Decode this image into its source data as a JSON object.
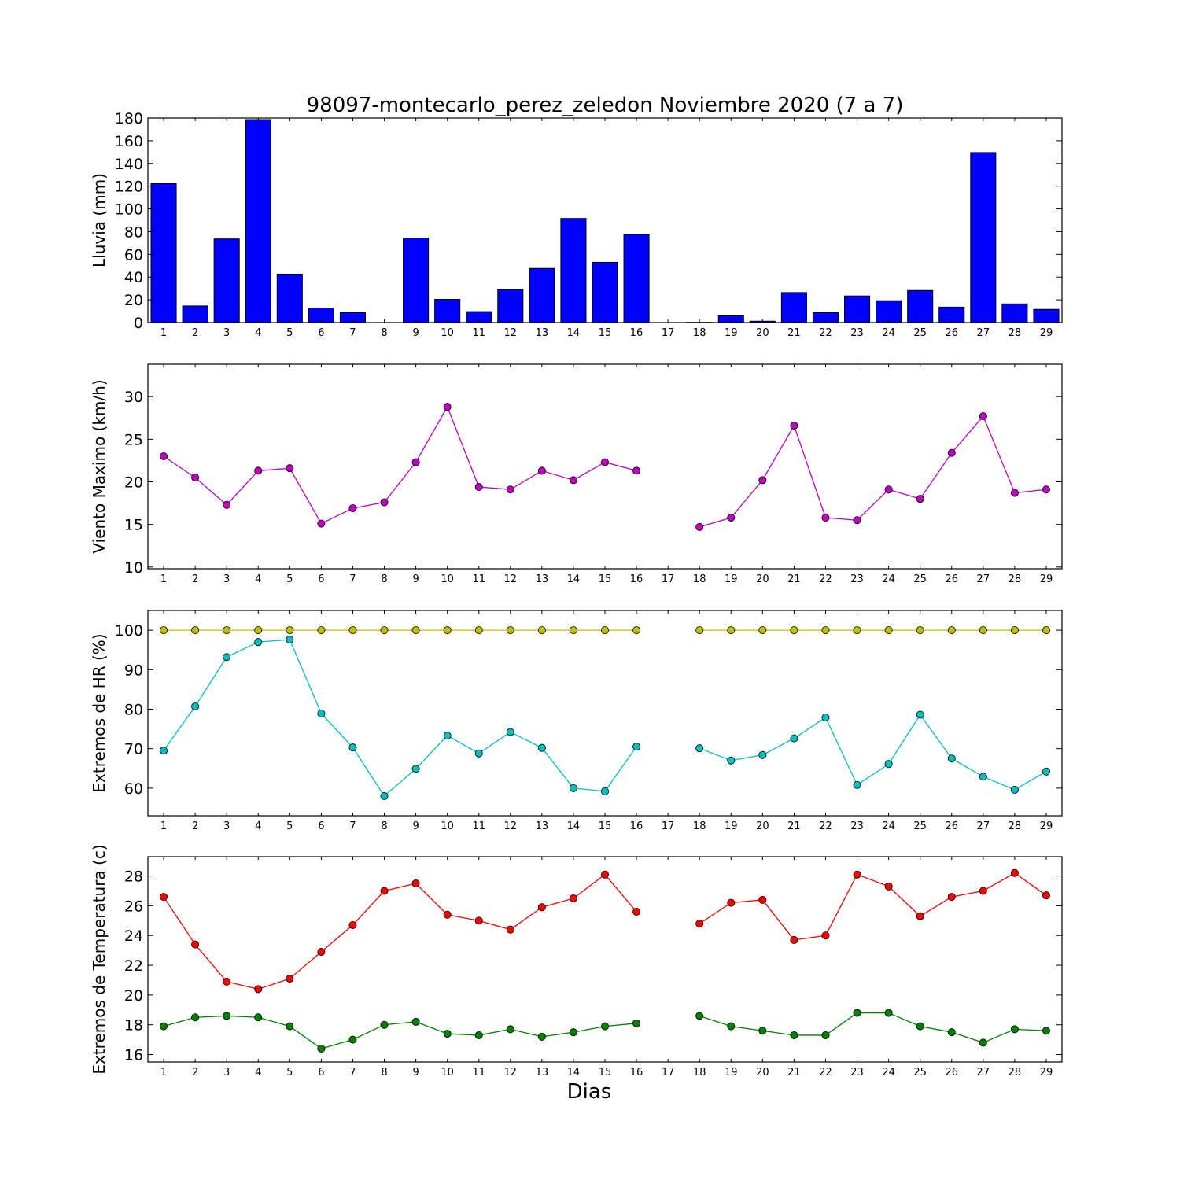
{
  "chart_data": [
    {
      "id": "lluvia",
      "type": "bar",
      "title": "98097-montecarlo_perez_zeledon Noviembre 2020  (7 a 7)",
      "ylabel": "Lluvia (mm)",
      "ylim": [
        0,
        180
      ],
      "yticks": [
        0,
        20,
        40,
        60,
        80,
        100,
        120,
        140,
        160,
        180
      ],
      "xlim": [
        0.5,
        29.5
      ],
      "categories": [
        "1",
        "2",
        "3",
        "4",
        "5",
        "6",
        "7",
        "8",
        "9",
        "10",
        "11",
        "12",
        "13",
        "14",
        "15",
        "16",
        "17",
        "18",
        "19",
        "20",
        "21",
        "22",
        "23",
        "24",
        "25",
        "26",
        "27",
        "28",
        "29"
      ],
      "series": [
        {
          "color": "#0000ff",
          "values": [
            122.4,
            14.6,
            73.6,
            178.6,
            42.6,
            12.8,
            8.8,
            0,
            74.4,
            20.4,
            9.6,
            29.0,
            47.6,
            91.6,
            53.0,
            77.6,
            0,
            0.2,
            6.0,
            1.2,
            26.4,
            8.8,
            23.4,
            19.2,
            28.2,
            13.6,
            149.6,
            16.4,
            11.6
          ]
        }
      ]
    },
    {
      "id": "viento",
      "type": "line",
      "ylabel": "Viento Maximo (km/h)",
      "ylim": [
        9.8,
        33.8
      ],
      "yticks": [
        10,
        15,
        20,
        25,
        30
      ],
      "xlim": [
        0.5,
        29.5
      ],
      "x": [
        1,
        2,
        3,
        4,
        5,
        6,
        7,
        8,
        9,
        10,
        11,
        12,
        13,
        14,
        15,
        16,
        17,
        18,
        19,
        20,
        21,
        22,
        23,
        24,
        25,
        26,
        27,
        28,
        29
      ],
      "series": [
        {
          "color": "#bf00bf",
          "values": [
            23.0,
            20.5,
            17.3,
            21.3,
            21.6,
            15.1,
            16.9,
            17.6,
            22.3,
            28.8,
            19.4,
            19.1,
            21.3,
            20.2,
            22.3,
            21.3,
            null,
            14.7,
            15.8,
            20.2,
            26.6,
            15.8,
            15.5,
            19.1,
            18.0,
            23.4,
            27.7,
            18.7,
            19.1
          ]
        }
      ]
    },
    {
      "id": "hr",
      "type": "line",
      "ylabel": "Extremos de HR (%)",
      "ylim": [
        53,
        105
      ],
      "yticks": [
        60,
        70,
        80,
        90,
        100
      ],
      "xlim": [
        0.5,
        29.5
      ],
      "x": [
        1,
        2,
        3,
        4,
        5,
        6,
        7,
        8,
        9,
        10,
        11,
        12,
        13,
        14,
        15,
        16,
        17,
        18,
        19,
        20,
        21,
        22,
        23,
        24,
        25,
        26,
        27,
        28,
        29
      ],
      "series": [
        {
          "color": "#bfbf00",
          "values": [
            100,
            100,
            100,
            100,
            100,
            100,
            100,
            100,
            100,
            100,
            100,
            100,
            100,
            100,
            100,
            100,
            null,
            100,
            100,
            100,
            100,
            100,
            100,
            100,
            100,
            100,
            100,
            100,
            100
          ]
        },
        {
          "color": "#00bfbf",
          "values": [
            69.5,
            80.7,
            93.2,
            97.0,
            97.6,
            78.9,
            70.3,
            58.0,
            64.9,
            73.3,
            68.8,
            74.2,
            70.2,
            60.0,
            59.2,
            70.5,
            null,
            70.1,
            67.0,
            68.4,
            72.6,
            77.9,
            60.8,
            66.1,
            78.6,
            67.5,
            62.9,
            59.6,
            64.2
          ]
        }
      ]
    },
    {
      "id": "temperatura",
      "type": "line",
      "ylabel": "Extremos de Temperatura (c)",
      "xlabel": "Dias",
      "ylim": [
        15.5,
        29.3
      ],
      "yticks": [
        16,
        18,
        20,
        22,
        24,
        26,
        28
      ],
      "xlim": [
        0.5,
        29.5
      ],
      "x": [
        1,
        2,
        3,
        4,
        5,
        6,
        7,
        8,
        9,
        10,
        11,
        12,
        13,
        14,
        15,
        16,
        17,
        18,
        19,
        20,
        21,
        22,
        23,
        24,
        25,
        26,
        27,
        28,
        29
      ],
      "series": [
        {
          "color": "#ff0000",
          "values": [
            26.6,
            23.4,
            20.9,
            20.4,
            21.1,
            22.9,
            24.7,
            27.0,
            27.5,
            25.4,
            25.0,
            24.4,
            25.9,
            26.5,
            28.1,
            25.6,
            null,
            24.8,
            26.2,
            26.4,
            23.7,
            24.0,
            28.1,
            27.3,
            25.3,
            26.6,
            27.0,
            28.2,
            26.7
          ]
        },
        {
          "color": "#008000",
          "values": [
            17.9,
            18.5,
            18.6,
            18.5,
            17.9,
            16.4,
            17.0,
            18.0,
            18.2,
            17.4,
            17.3,
            17.7,
            17.2,
            17.5,
            17.9,
            18.1,
            null,
            18.6,
            17.9,
            17.6,
            17.3,
            17.3,
            18.8,
            18.8,
            17.9,
            17.5,
            16.8,
            17.7,
            17.6
          ]
        }
      ]
    }
  ]
}
